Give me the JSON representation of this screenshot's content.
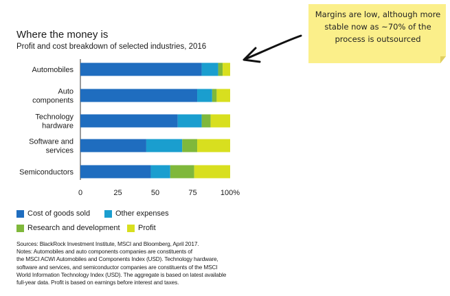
{
  "chart_data": {
    "type": "bar",
    "orientation": "horizontal",
    "stacked": true,
    "title": "Where the money is",
    "subtitle": "Profit and cost breakdown of selected industries, 2016",
    "categories": [
      [
        "Automobiles"
      ],
      [
        "Auto",
        "components"
      ],
      [
        "Technology",
        "hardware"
      ],
      [
        "Software and",
        "services"
      ],
      [
        "Semiconductors"
      ]
    ],
    "series": [
      {
        "name": "Cost of goods sold",
        "color": "#1f6dbf",
        "values": [
          81,
          78,
          65,
          44,
          47
        ]
      },
      {
        "name": "Other expenses",
        "color": "#1a9ecf",
        "values": [
          11,
          10,
          16,
          24,
          13
        ]
      },
      {
        "name": "Research and development",
        "color": "#7fb83b",
        "values": [
          3,
          3,
          6,
          10,
          16
        ]
      },
      {
        "name": "Profit",
        "color": "#d8df1f",
        "values": [
          5,
          9,
          13,
          22,
          24
        ]
      }
    ],
    "xlim": [
      0,
      100
    ],
    "xticks": [
      "0",
      "25",
      "50",
      "75",
      "100%"
    ],
    "xtick_values": [
      0,
      25,
      50,
      75,
      100
    ],
    "legend_position": "bottom-left"
  },
  "annotation": {
    "text_lines": [
      "Margins are low, although more",
      "stable now as ~70% of the",
      "process is outsourced"
    ],
    "arrow_color": "#111111"
  },
  "sources": {
    "lines": [
      "Sources: BlackRock Investment Institute, MSCI and Bloomberg, April 2017.",
      "Notes: Automobiles and auto components companies are constituents of",
      "the MSCI ACWI Automobiles and Components Index (USD). Technology hardware,",
      "software and services, and semiconductor companies are constituents of the MSCI",
      "World Information Technology Index (USD). The aggregate is based on latest available",
      "full-year data. Profit is based on earnings before interest and taxes."
    ]
  }
}
